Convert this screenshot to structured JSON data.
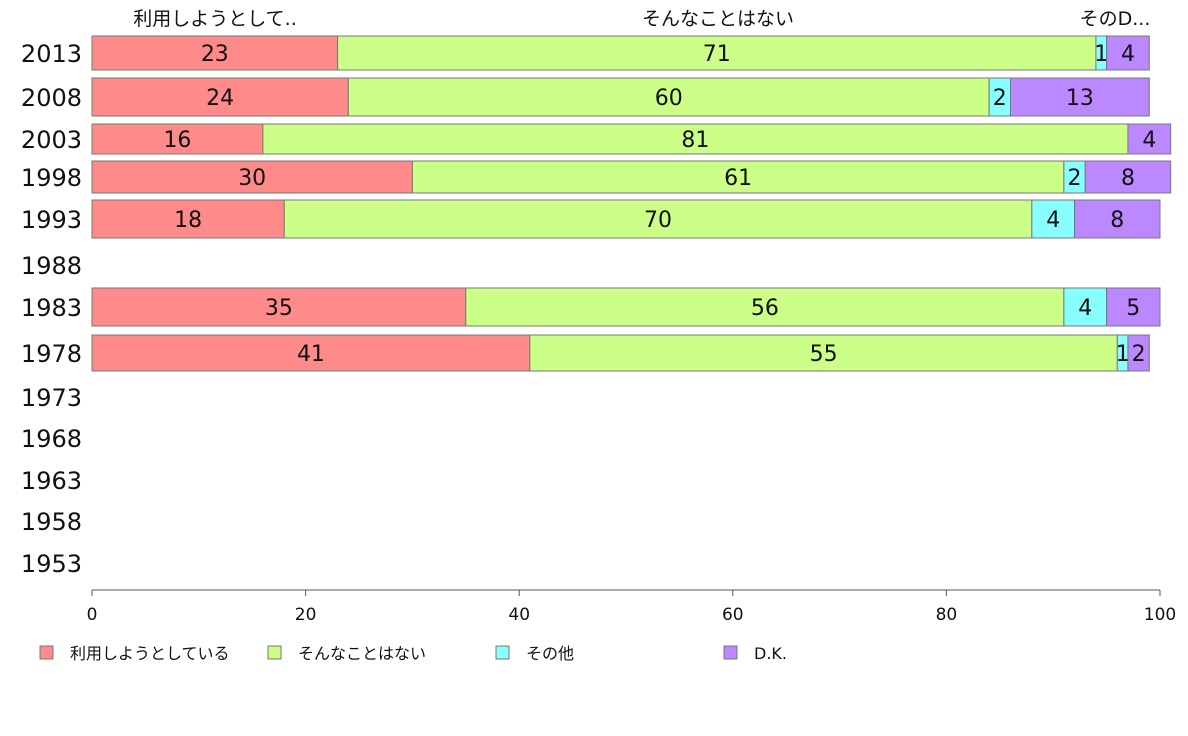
{
  "chart_data": {
    "type": "bar",
    "orientation": "horizontal",
    "stacked": true,
    "categories": [
      "2013",
      "2008",
      "2003",
      "1998",
      "1993",
      "1988",
      "1983",
      "1978",
      "1973",
      "1968",
      "1963",
      "1958",
      "1953"
    ],
    "series": [
      {
        "name": "利用しようとしている",
        "color": "#ff8a8a",
        "values": [
          23,
          24,
          16,
          30,
          18,
          null,
          35,
          41,
          null,
          null,
          null,
          null,
          null
        ]
      },
      {
        "name": "そんなことはない",
        "color": "#ccff88",
        "values": [
          71,
          60,
          81,
          61,
          70,
          null,
          56,
          55,
          null,
          null,
          null,
          null,
          null
        ]
      },
      {
        "name": "その他",
        "color": "#88ffff",
        "values": [
          1,
          2,
          0,
          2,
          4,
          null,
          4,
          1,
          null,
          null,
          null,
          null,
          null
        ]
      },
      {
        "name": "D.K.",
        "color": "#bb88ff",
        "values": [
          4,
          13,
          4,
          8,
          8,
          null,
          5,
          2,
          null,
          null,
          null,
          null,
          null
        ]
      }
    ],
    "header_labels": [
      "利用しようとして..",
      "そんなことはない",
      "そのD..."
    ],
    "xlim": [
      0,
      100
    ],
    "xticks": [
      "0",
      "20",
      "40",
      "60",
      "80",
      "100"
    ],
    "legend_position": "bottom",
    "grid": false
  }
}
